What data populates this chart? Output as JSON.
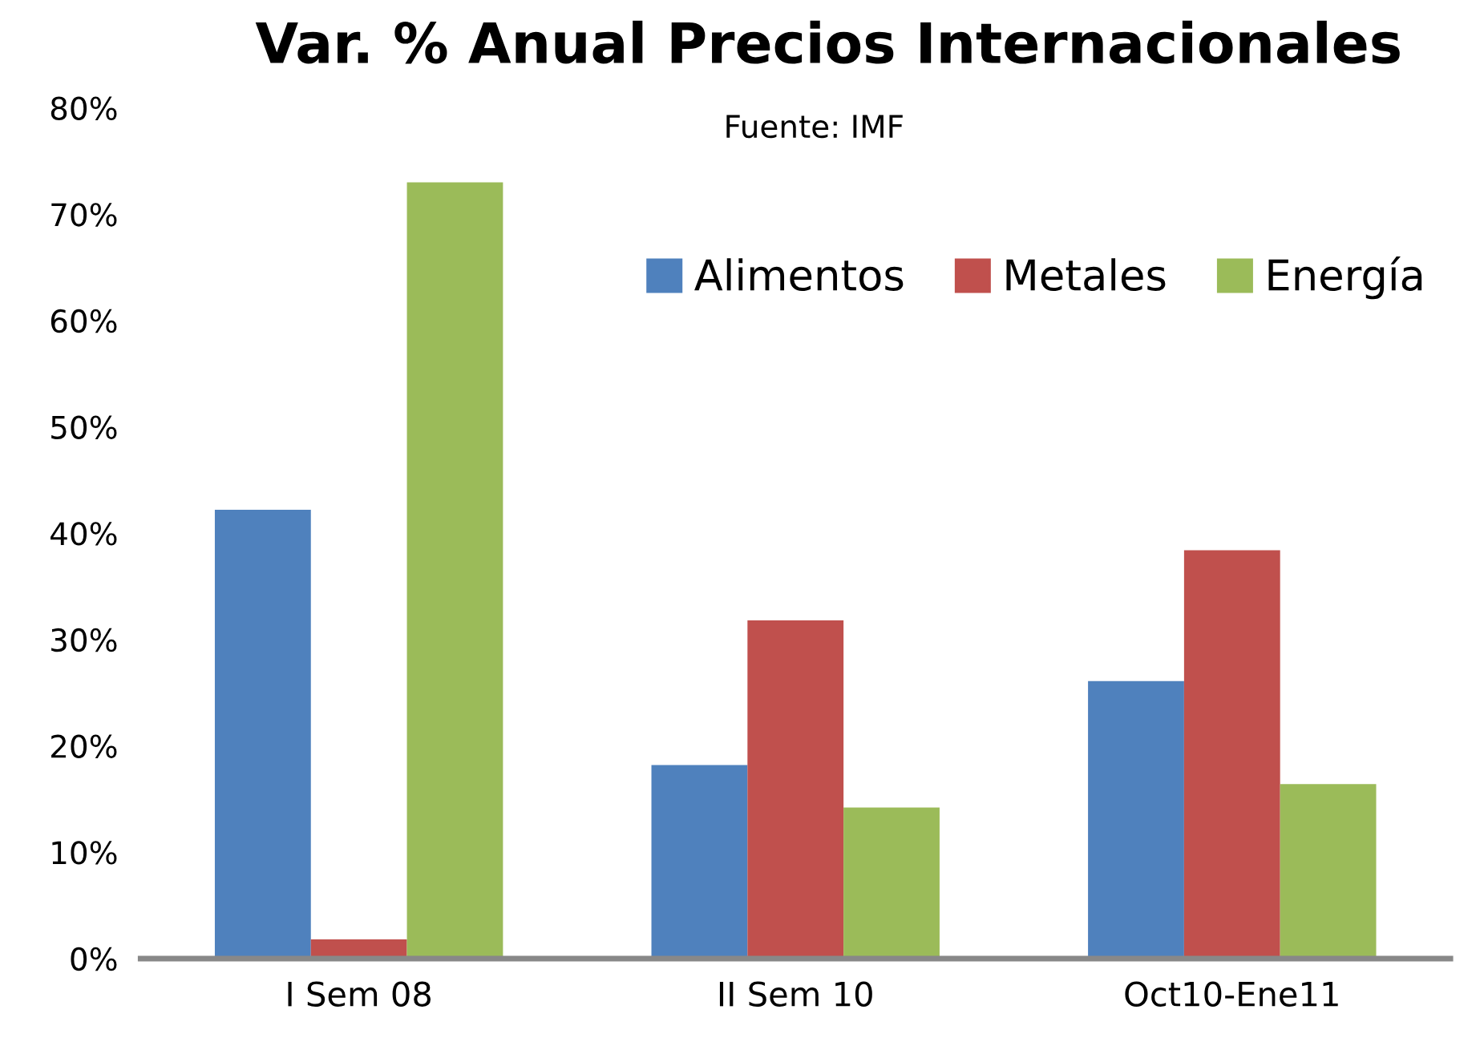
{
  "chart_data": {
    "type": "bar",
    "title": "Var. % Anual Precios Internacionales",
    "subtitle": "Fuente: IMF",
    "categories": [
      "I Sem 08",
      "II Sem 10",
      "Oct10-Ene11"
    ],
    "series": [
      {
        "name": "Alimentos",
        "color": "#4f81bd",
        "values": [
          42.2,
          18.2,
          26.1
        ]
      },
      {
        "name": "Metales",
        "color": "#c0504d",
        "values": [
          1.8,
          31.8,
          38.4
        ]
      },
      {
        "name": "Energía",
        "color": "#9bbb59",
        "values": [
          73.0,
          14.2,
          16.4
        ]
      }
    ],
    "ylim": [
      0,
      80
    ],
    "yticks": [
      {
        "value": 0,
        "label": "0%"
      },
      {
        "value": 10,
        "label": "10%"
      },
      {
        "value": 20,
        "label": "20%"
      },
      {
        "value": 30,
        "label": "30%"
      },
      {
        "value": 40,
        "label": "40%"
      },
      {
        "value": 50,
        "label": "50%"
      },
      {
        "value": 60,
        "label": "60%"
      },
      {
        "value": 70,
        "label": "70%"
      },
      {
        "value": 80,
        "label": "80%"
      }
    ],
    "grid": false,
    "legend": "top right"
  }
}
